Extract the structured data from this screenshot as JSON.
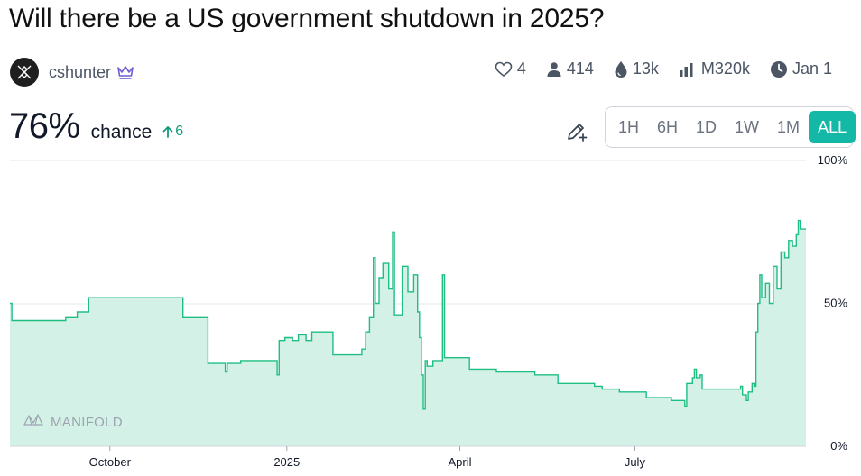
{
  "title": "Will there be a US government shutdown in 2025?",
  "author": {
    "name": "cshunter",
    "avatar_icon": "manifold-x-logo",
    "badge_icon": "crown-icon"
  },
  "stats": {
    "likes": "4",
    "traders": "414",
    "liquidity": "13k",
    "volume": "M320k",
    "close_date": "Jan 1"
  },
  "probability": {
    "value": "76%",
    "label": "chance",
    "change": "6"
  },
  "time_ranges": [
    {
      "label": "1H",
      "active": false
    },
    {
      "label": "6H",
      "active": false
    },
    {
      "label": "1D",
      "active": false
    },
    {
      "label": "1W",
      "active": false
    },
    {
      "label": "1M",
      "active": false
    },
    {
      "label": "ALL",
      "active": true
    }
  ],
  "watermark": "MANIFOLD",
  "colors": {
    "accent": "#14b8a6",
    "line": "#1fbf83",
    "fill": "#d3f1e6",
    "positive": "#119a7a"
  },
  "chart_data": {
    "type": "area",
    "step": true,
    "ylim": [
      0,
      100
    ],
    "y_ticks": [
      "0%",
      "50%",
      "100%"
    ],
    "x_ticks": [
      {
        "label": "October",
        "date": "2024-10-01"
      },
      {
        "label": "2025",
        "date": "2025-01-01"
      },
      {
        "label": "April",
        "date": "2025-04-01"
      },
      {
        "label": "July",
        "date": "2025-07-01"
      }
    ],
    "xlim": [
      "2024-08-10",
      "2025-09-28"
    ],
    "series": [
      {
        "points": [
          [
            "2024-08-10",
            50
          ],
          [
            "2024-08-11",
            44
          ],
          [
            "2024-09-08",
            45
          ],
          [
            "2024-09-14",
            47
          ],
          [
            "2024-09-20",
            52
          ],
          [
            "2024-11-08",
            45
          ],
          [
            "2024-11-21",
            29
          ],
          [
            "2024-11-30",
            26
          ],
          [
            "2024-12-01",
            29
          ],
          [
            "2024-12-08",
            30
          ],
          [
            "2024-12-20",
            30
          ],
          [
            "2024-12-27",
            25
          ],
          [
            "2024-12-28",
            37
          ],
          [
            "2024-12-31",
            38
          ],
          [
            "2025-01-04",
            37
          ],
          [
            "2025-01-07",
            39
          ],
          [
            "2025-01-11",
            37
          ],
          [
            "2025-01-14",
            40
          ],
          [
            "2025-01-22",
            40
          ],
          [
            "2025-01-25",
            32
          ],
          [
            "2025-02-08",
            32
          ],
          [
            "2025-02-09",
            34
          ],
          [
            "2025-02-11",
            40
          ],
          [
            "2025-02-13",
            45
          ],
          [
            "2025-02-15",
            66
          ],
          [
            "2025-02-16",
            50
          ],
          [
            "2025-02-18",
            59
          ],
          [
            "2025-02-20",
            64
          ],
          [
            "2025-02-23",
            55
          ],
          [
            "2025-02-25",
            75
          ],
          [
            "2025-02-26",
            46
          ],
          [
            "2025-03-02",
            63
          ],
          [
            "2025-03-05",
            54
          ],
          [
            "2025-03-08",
            60
          ],
          [
            "2025-03-10",
            47
          ],
          [
            "2025-03-11",
            38
          ],
          [
            "2025-03-12",
            25
          ],
          [
            "2025-03-13",
            13
          ],
          [
            "2025-03-14",
            30
          ],
          [
            "2025-03-15",
            28
          ],
          [
            "2025-03-18",
            30
          ],
          [
            "2025-03-20",
            30
          ],
          [
            "2025-03-23",
            60
          ],
          [
            "2025-03-24",
            31
          ],
          [
            "2025-04-03",
            31
          ],
          [
            "2025-04-06",
            27
          ],
          [
            "2025-04-20",
            26
          ],
          [
            "2025-05-10",
            25
          ],
          [
            "2025-05-20",
            25
          ],
          [
            "2025-05-22",
            22
          ],
          [
            "2025-06-10",
            21
          ],
          [
            "2025-06-14",
            20
          ],
          [
            "2025-06-23",
            19
          ],
          [
            "2025-07-07",
            17
          ],
          [
            "2025-07-20",
            16
          ],
          [
            "2025-07-27",
            14
          ],
          [
            "2025-07-28",
            22
          ],
          [
            "2025-07-31",
            24
          ],
          [
            "2025-08-01",
            27
          ],
          [
            "2025-08-02",
            24
          ],
          [
            "2025-08-04",
            25
          ],
          [
            "2025-08-05",
            20
          ],
          [
            "2025-08-20",
            20
          ],
          [
            "2025-08-25",
            21
          ],
          [
            "2025-08-26",
            18
          ],
          [
            "2025-08-28",
            16
          ],
          [
            "2025-08-29",
            19
          ],
          [
            "2025-08-31",
            22
          ],
          [
            "2025-09-01",
            21
          ],
          [
            "2025-09-02",
            40
          ],
          [
            "2025-09-03",
            50
          ],
          [
            "2025-09-04",
            60
          ],
          [
            "2025-09-05",
            52
          ],
          [
            "2025-09-07",
            57
          ],
          [
            "2025-09-09",
            50
          ],
          [
            "2025-09-11",
            63
          ],
          [
            "2025-09-13",
            55
          ],
          [
            "2025-09-15",
            68
          ],
          [
            "2025-09-17",
            66
          ],
          [
            "2025-09-19",
            72
          ],
          [
            "2025-09-21",
            70
          ],
          [
            "2025-09-23",
            74
          ],
          [
            "2025-09-24",
            79
          ],
          [
            "2025-09-25",
            76
          ],
          [
            "2025-09-28",
            76
          ]
        ]
      }
    ]
  }
}
